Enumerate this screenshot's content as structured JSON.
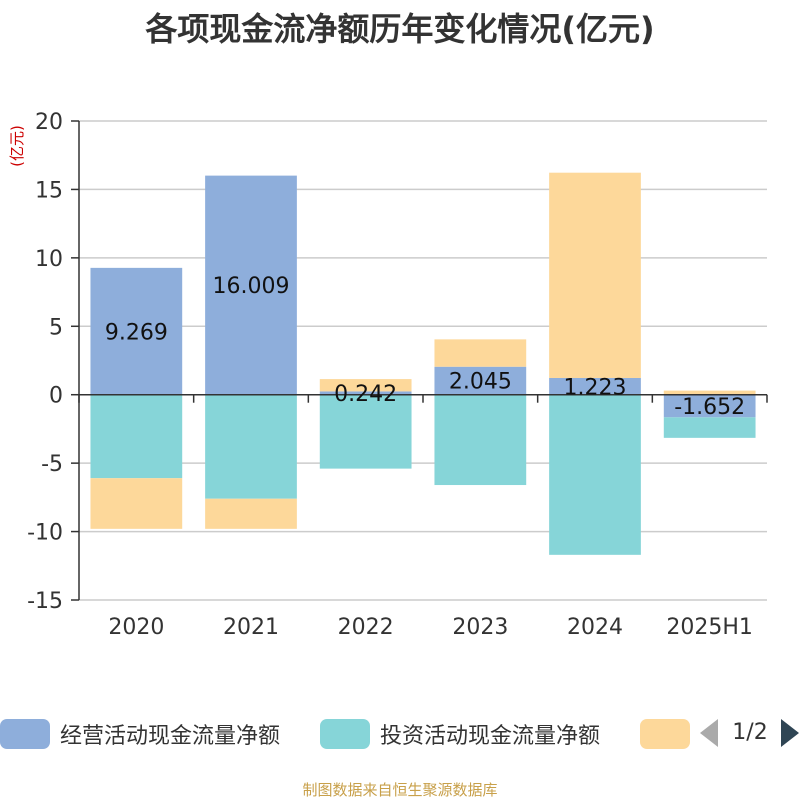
{
  "title": "各项现金流净额历年变化情况(亿元)",
  "footer": "制图数据来自恒生聚源数据库",
  "legend_pager": "1/2",
  "chart_data": {
    "type": "bar",
    "stacked": true,
    "categories": [
      "2020",
      "2021",
      "2022",
      "2023",
      "2024",
      "2025H1"
    ],
    "ylabel": "(亿元)",
    "ylim": [
      -15,
      20
    ],
    "yticks": [
      20,
      15,
      10,
      5,
      0,
      -5,
      -10,
      -15
    ],
    "grid": true,
    "legend_position": "bottom",
    "series": [
      {
        "name": "经营活动现金流量净额",
        "color": "#8eaedb",
        "values": [
          9.269,
          16.009,
          0.242,
          2.045,
          1.223,
          -1.652
        ],
        "data_labels": [
          "9.269",
          "16.009",
          "0.242",
          "2.045",
          "1.223",
          "-1.652"
        ]
      },
      {
        "name": "投资活动现金流量净额",
        "color": "#86d5d8",
        "values": [
          -6.1,
          -7.6,
          -5.4,
          -6.6,
          -11.7,
          -1.5
        ]
      },
      {
        "name": "",
        "color": "#fdd89a",
        "values": [
          -3.7,
          -2.2,
          0.9,
          2.0,
          15.0,
          0.3
        ]
      }
    ]
  }
}
